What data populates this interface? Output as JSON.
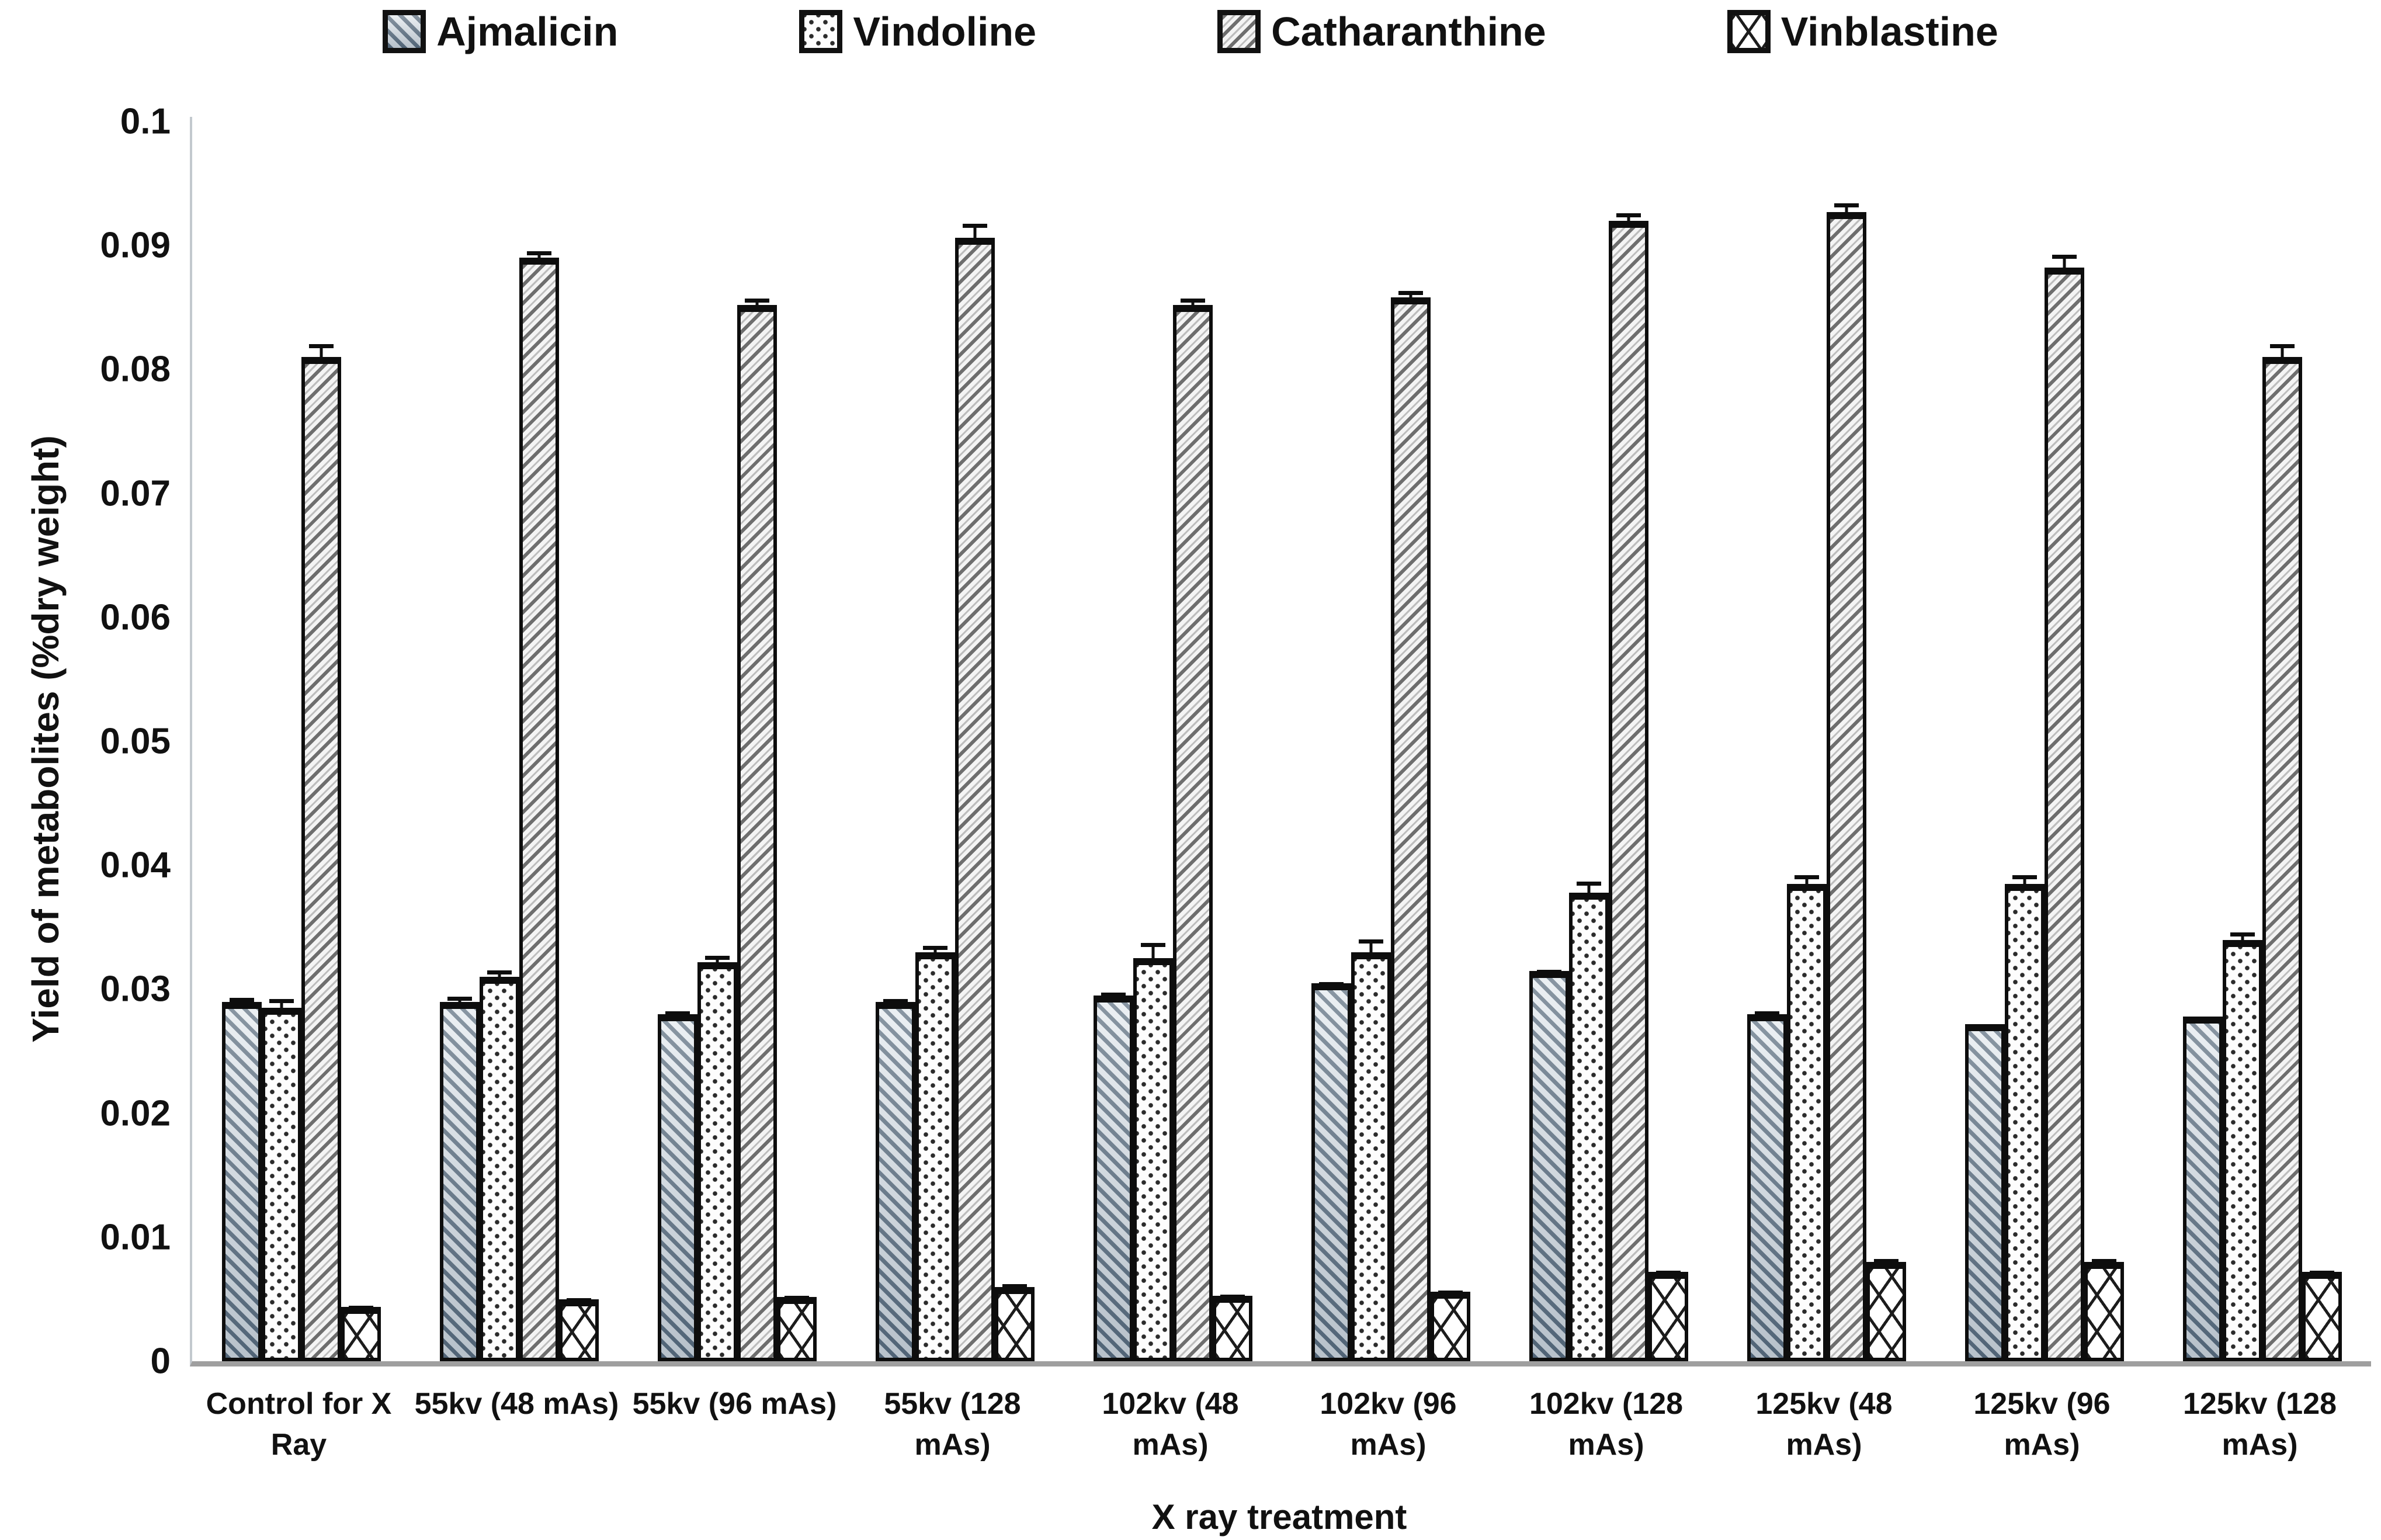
{
  "chart_data": {
    "type": "bar",
    "title": "",
    "xlabel": "X ray treatment",
    "ylabel": "Yield of metabolites (%dry weight)",
    "ylim": [
      0,
      0.1
    ],
    "ytick_labels": [
      "0",
      "0.01",
      "0.02",
      "0.03",
      "0.04",
      "0.05",
      "0.06",
      "0.07",
      "0.08",
      "0.09",
      "0.1"
    ],
    "grid": false,
    "legend_position": "top",
    "error_bars": true,
    "categories": [
      "Control for X Ray",
      "55kv (48 mAs)",
      "55kv (96 mAs)",
      "55kv (128 mAs)",
      "102kv (48 mAs)",
      "102kv (96 mAs)",
      "102kv (128 mAs)",
      "125kv (48 mAs)",
      "125kv (96 mAs)",
      "125kv (128 mAs)"
    ],
    "series": [
      {
        "name": "Ajmalicin",
        "pattern": "ajmalicin",
        "values": [
          0.029,
          0.029,
          0.028,
          0.029,
          0.0295,
          0.0305,
          0.0315,
          0.028,
          0.0272,
          0.0278
        ],
        "errors": [
          0.0006,
          0.0007,
          0.0005,
          0.0005,
          0.0005,
          0.0004,
          0.0004,
          0.0005,
          0.0003,
          0.0003
        ]
      },
      {
        "name": "Vindoline",
        "pattern": "vindoline",
        "values": [
          0.0285,
          0.031,
          0.0322,
          0.033,
          0.0325,
          0.033,
          0.0378,
          0.0385,
          0.0385,
          0.034
        ],
        "errors": [
          0.001,
          0.0008,
          0.0008,
          0.0008,
          0.0015,
          0.0013,
          0.0012,
          0.001,
          0.001,
          0.0009
        ]
      },
      {
        "name": "Catharanthine",
        "pattern": "catharanthine",
        "values": [
          0.081,
          0.089,
          0.0852,
          0.0906,
          0.0852,
          0.0858,
          0.092,
          0.0927,
          0.0882,
          0.081
        ],
        "errors": [
          0.0013,
          0.0008,
          0.0008,
          0.0014,
          0.0008,
          0.0008,
          0.0009,
          0.001,
          0.0013,
          0.0013
        ]
      },
      {
        "name": "Vinblastine",
        "pattern": "vinblastine",
        "values": [
          0.0044,
          0.005,
          0.0052,
          0.006,
          0.0053,
          0.0056,
          0.0072,
          0.008,
          0.008,
          0.0072
        ],
        "errors": [
          0.0004,
          0.0004,
          0.0004,
          0.0005,
          0.0004,
          0.0004,
          0.0004,
          0.0005,
          0.0005,
          0.0004
        ]
      }
    ],
    "colors": {
      "bar_border": "#0d0d0d",
      "axis_line": "#9f9f9f",
      "ajmalicin_hatch": "#55687a",
      "catharanthine_hatch": "#6e6e6e",
      "background": "#ffffff"
    }
  }
}
